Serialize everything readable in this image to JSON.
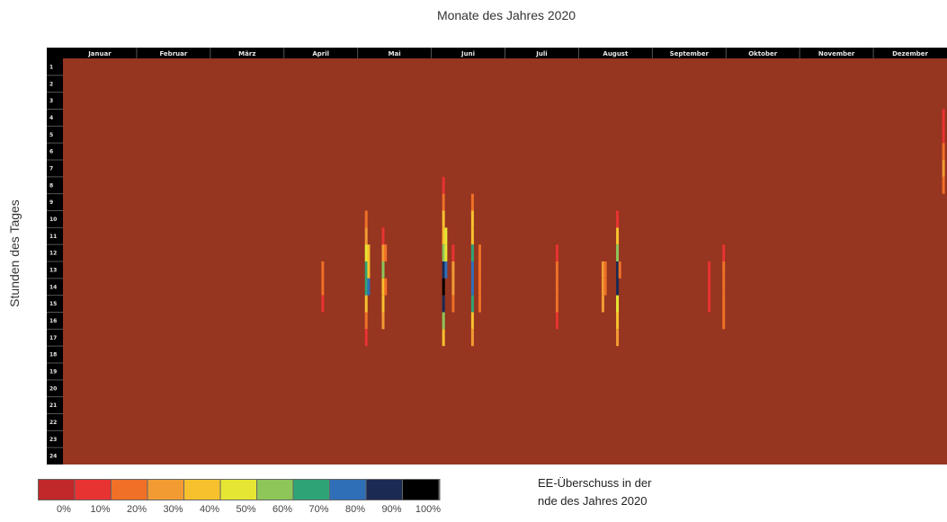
{
  "chart_data": {
    "type": "heatmap",
    "title": "Monate des Jahres 2020",
    "xlabel": "Monate des Jahres 2020",
    "ylabel": "Stunden des Tages",
    "x_categories": [
      "Januar",
      "Februar",
      "März",
      "April",
      "Mai",
      "Juni",
      "Juli",
      "August",
      "September",
      "Oktober",
      "November",
      "Dezember"
    ],
    "y_categories": [
      "1",
      "2",
      "3",
      "4",
      "5",
      "6",
      "7",
      "8",
      "9",
      "10",
      "11",
      "12",
      "13",
      "14",
      "15",
      "16",
      "17",
      "18",
      "19",
      "20",
      "21",
      "22",
      "23",
      "24"
    ],
    "x_domain": [
      0,
      366
    ],
    "default_value_percent": 0,
    "cells": [
      {
        "day": 107,
        "hours": [
          13,
          14
        ],
        "value": 20
      },
      {
        "day": 107,
        "hours": [
          15
        ],
        "value": 10
      },
      {
        "day": 125,
        "hours": [
          10
        ],
        "value": 20
      },
      {
        "day": 125,
        "hours": [
          11
        ],
        "value": 30
      },
      {
        "day": 125,
        "hours": [
          12
        ],
        "value": 50
      },
      {
        "day": 125,
        "hours": [
          13,
          14
        ],
        "value": 70
      },
      {
        "day": 125,
        "hours": [
          15
        ],
        "value": 40
      },
      {
        "day": 125,
        "hours": [
          16
        ],
        "value": 20
      },
      {
        "day": 125,
        "hours": [
          17
        ],
        "value": 10
      },
      {
        "day": 126,
        "hours": [
          12,
          13
        ],
        "value": 40
      },
      {
        "day": 126,
        "hours": [
          14
        ],
        "value": 80
      },
      {
        "day": 132,
        "hours": [
          11
        ],
        "value": 10
      },
      {
        "day": 132,
        "hours": [
          12
        ],
        "value": 30
      },
      {
        "day": 132,
        "hours": [
          13
        ],
        "value": 60
      },
      {
        "day": 132,
        "hours": [
          14,
          15
        ],
        "value": 40
      },
      {
        "day": 132,
        "hours": [
          16
        ],
        "value": 30
      },
      {
        "day": 133,
        "hours": [
          12,
          14
        ],
        "value": 20
      },
      {
        "day": 157,
        "hours": [
          8
        ],
        "value": 10
      },
      {
        "day": 157,
        "hours": [
          9
        ],
        "value": 20
      },
      {
        "day": 157,
        "hours": [
          10,
          11
        ],
        "value": 40
      },
      {
        "day": 157,
        "hours": [
          12
        ],
        "value": 60
      },
      {
        "day": 157,
        "hours": [
          13
        ],
        "value": 90
      },
      {
        "day": 157,
        "hours": [
          14
        ],
        "value": 100
      },
      {
        "day": 157,
        "hours": [
          15
        ],
        "value": 90
      },
      {
        "day": 157,
        "hours": [
          16
        ],
        "value": 60
      },
      {
        "day": 157,
        "hours": [
          17
        ],
        "value": 40
      },
      {
        "day": 158,
        "hours": [
          11,
          12
        ],
        "value": 50
      },
      {
        "day": 158,
        "hours": [
          13
        ],
        "value": 80
      },
      {
        "day": 161,
        "hours": [
          12
        ],
        "value": 10
      },
      {
        "day": 161,
        "hours": [
          13,
          14
        ],
        "value": 30
      },
      {
        "day": 161,
        "hours": [
          15
        ],
        "value": 20
      },
      {
        "day": 169,
        "hours": [
          9
        ],
        "value": 20
      },
      {
        "day": 169,
        "hours": [
          10,
          11
        ],
        "value": 40
      },
      {
        "day": 169,
        "hours": [
          12
        ],
        "value": 70
      },
      {
        "day": 169,
        "hours": [
          13,
          14
        ],
        "value": 80
      },
      {
        "day": 169,
        "hours": [
          15
        ],
        "value": 70
      },
      {
        "day": 169,
        "hours": [
          16
        ],
        "value": 40
      },
      {
        "day": 169,
        "hours": [
          17
        ],
        "value": 30
      },
      {
        "day": 172,
        "hours": [
          12,
          13,
          14,
          15
        ],
        "value": 20
      },
      {
        "day": 204,
        "hours": [
          12
        ],
        "value": 10
      },
      {
        "day": 204,
        "hours": [
          13,
          14,
          15
        ],
        "value": 20
      },
      {
        "day": 204,
        "hours": [
          16
        ],
        "value": 10
      },
      {
        "day": 223,
        "hours": [
          13,
          14,
          15
        ],
        "value": 30
      },
      {
        "day": 224,
        "hours": [
          13,
          14
        ],
        "value": 20
      },
      {
        "day": 229,
        "hours": [
          10
        ],
        "value": 10
      },
      {
        "day": 229,
        "hours": [
          11
        ],
        "value": 40
      },
      {
        "day": 229,
        "hours": [
          12
        ],
        "value": 60
      },
      {
        "day": 229,
        "hours": [
          13,
          14
        ],
        "value": 90
      },
      {
        "day": 229,
        "hours": [
          15
        ],
        "value": 50
      },
      {
        "day": 229,
        "hours": [
          16
        ],
        "value": 40
      },
      {
        "day": 229,
        "hours": [
          17
        ],
        "value": 30
      },
      {
        "day": 230,
        "hours": [
          13
        ],
        "value": 20
      },
      {
        "day": 267,
        "hours": [
          13,
          14,
          15
        ],
        "value": 10
      },
      {
        "day": 273,
        "hours": [
          12
        ],
        "value": 10
      },
      {
        "day": 273,
        "hours": [
          13,
          14,
          15,
          16
        ],
        "value": 20
      },
      {
        "day": 364,
        "hours": [
          4,
          5
        ],
        "value": 10
      },
      {
        "day": 364,
        "hours": [
          6
        ],
        "value": 20
      },
      {
        "day": 364,
        "hours": [
          7
        ],
        "value": 30
      },
      {
        "day": 364,
        "hours": [
          8
        ],
        "value": 20
      }
    ],
    "legend": {
      "labels": [
        "0%",
        "10%",
        "20%",
        "30%",
        "40%",
        "50%",
        "60%",
        "70%",
        "80%",
        "90%",
        "100%"
      ],
      "colors": [
        "#c0282a",
        "#e73331",
        "#ef7026",
        "#f29b33",
        "#f7c12d",
        "#e5e633",
        "#8ec65a",
        "#2ea476",
        "#2f6fb8",
        "#1b2a52",
        "#000000"
      ]
    },
    "background_color": "#963520",
    "grid": false
  },
  "legend_caption": {
    "line1": "EE-Überschuss in der",
    "line2": "nde des Jahres 2020"
  }
}
